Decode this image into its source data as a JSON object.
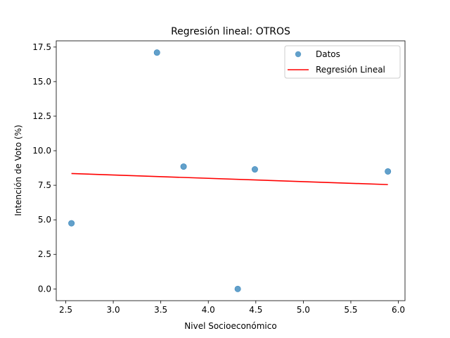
{
  "chart_data": {
    "type": "scatter",
    "title": "Regresión lineal: OTROS",
    "xlabel": "Nivel Socioeconómico",
    "ylabel": "Intención de Voto (%)",
    "xlim": [
      2.4,
      6.07
    ],
    "ylim": [
      -0.85,
      17.95
    ],
    "xticks": [
      "2.5",
      "3.0",
      "3.5",
      "4.0",
      "4.5",
      "5.0",
      "5.5",
      "6.0"
    ],
    "yticks": [
      "0.0",
      "2.5",
      "5.0",
      "7.5",
      "10.0",
      "12.5",
      "15.0",
      "17.5"
    ],
    "grid": false,
    "legend_position": "top-right",
    "series": [
      {
        "name": "Datos",
        "kind": "scatter",
        "color": "#1f77b4",
        "points": [
          {
            "x": 2.56,
            "y": 4.75
          },
          {
            "x": 3.46,
            "y": 17.1
          },
          {
            "x": 3.74,
            "y": 8.85
          },
          {
            "x": 4.31,
            "y": 0.0
          },
          {
            "x": 4.49,
            "y": 8.65
          },
          {
            "x": 5.89,
            "y": 8.5
          }
        ]
      },
      {
        "name": "Regresión Lineal",
        "kind": "line",
        "color": "#ff0000",
        "points": [
          {
            "x": 2.56,
            "y": 8.35
          },
          {
            "x": 5.89,
            "y": 7.55
          }
        ]
      }
    ]
  }
}
